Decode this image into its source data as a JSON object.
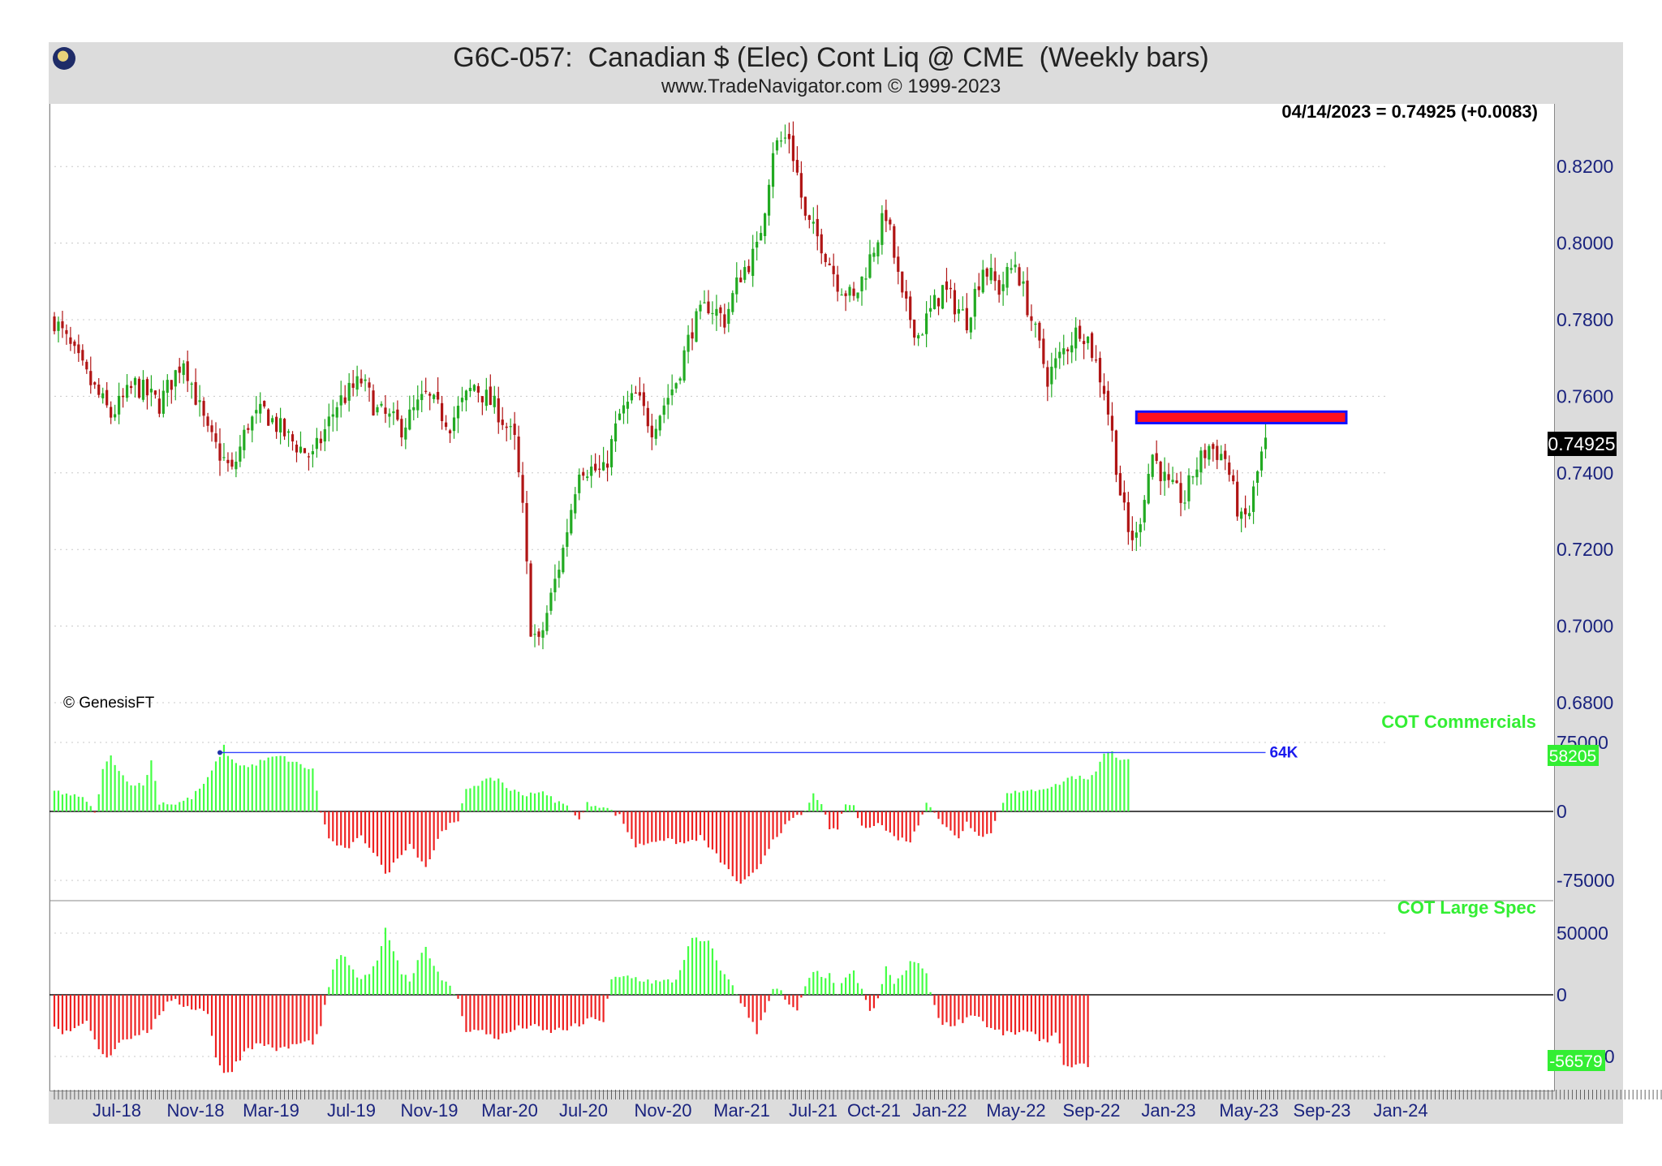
{
  "title": "G6C-057:  Canadian $ (Elec) Cont Liq @ CME  (Weekly bars)",
  "subtitle": "www.TradeNavigator.com © 1999-2023",
  "last_price_label": "04/14/2023 = 0.74925 (+0.0083)",
  "last_price_tag": "0.74925",
  "copyright": "© GenesisFT",
  "colors": {
    "up": "#22aa22",
    "down": "#b01515",
    "cot_pos": "#44ff44",
    "cot_neg": "#ee2222",
    "label_green": "#33ee33",
    "axis_text": "#1a237e",
    "resistance_fill": "#ff1020",
    "resistance_border": "#1010ff",
    "trend_line": "#3344ff"
  },
  "chart_data": [
    {
      "type": "candlestick",
      "series_name": "",
      "x_labels": [
        "Jul-18",
        "Nov-18",
        "Mar-19",
        "Jul-19",
        "Nov-19",
        "Mar-20",
        "Jul-20",
        "Nov-20",
        "Mar-21",
        "Jul-21",
        "Oct-21",
        "Jan-22",
        "May-22",
        "Sep-22",
        "Jan-23",
        "May-23",
        "Sep-23",
        "Jan-24"
      ],
      "y_ticks": [
        0.82,
        0.8,
        0.78,
        0.76,
        0.74,
        0.72,
        0.7,
        0.68
      ],
      "y_tick_labels": [
        "0.8200",
        "0.8000",
        "0.7800",
        "0.7600",
        "0.7400",
        "0.7200",
        "0.7000",
        "0.6800"
      ],
      "ylim": [
        0.676,
        0.835
      ],
      "close_path": [
        [
          0,
          0.78
        ],
        [
          8,
          0.765
        ],
        [
          14,
          0.755
        ],
        [
          20,
          0.763
        ],
        [
          26,
          0.758
        ],
        [
          32,
          0.77
        ],
        [
          38,
          0.75
        ],
        [
          44,
          0.74
        ],
        [
          48,
          0.753
        ],
        [
          52,
          0.756
        ],
        [
          58,
          0.749
        ],
        [
          64,
          0.744
        ],
        [
          70,
          0.758
        ],
        [
          76,
          0.764
        ],
        [
          80,
          0.756
        ],
        [
          86,
          0.752
        ],
        [
          92,
          0.76
        ],
        [
          98,
          0.753
        ],
        [
          104,
          0.763
        ],
        [
          110,
          0.756
        ],
        [
          114,
          0.748
        ],
        [
          116,
          0.73
        ],
        [
          118,
          0.7
        ],
        [
          120,
          0.695
        ],
        [
          126,
          0.72
        ],
        [
          130,
          0.742
        ],
        [
          136,
          0.74
        ],
        [
          140,
          0.755
        ],
        [
          144,
          0.76
        ],
        [
          148,
          0.752
        ],
        [
          154,
          0.764
        ],
        [
          158,
          0.778
        ],
        [
          162,
          0.784
        ],
        [
          166,
          0.78
        ],
        [
          170,
          0.792
        ],
        [
          174,
          0.798
        ],
        [
          176,
          0.81
        ],
        [
          178,
          0.825
        ],
        [
          182,
          0.828
        ],
        [
          184,
          0.818
        ],
        [
          186,
          0.806
        ],
        [
          190,
          0.8
        ],
        [
          194,
          0.79
        ],
        [
          198,
          0.785
        ],
        [
          202,
          0.796
        ],
        [
          206,
          0.808
        ],
        [
          210,
          0.785
        ],
        [
          214,
          0.776
        ],
        [
          220,
          0.788
        ],
        [
          226,
          0.78
        ],
        [
          230,
          0.794
        ],
        [
          234,
          0.788
        ],
        [
          238,
          0.795
        ],
        [
          242,
          0.78
        ],
        [
          246,
          0.765
        ],
        [
          250,
          0.772
        ],
        [
          254,
          0.778
        ],
        [
          256,
          0.775
        ],
        [
          260,
          0.762
        ],
        [
          262,
          0.75
        ],
        [
          264,
          0.735
        ],
        [
          266,
          0.724
        ],
        [
          268,
          0.723
        ],
        [
          270,
          0.735
        ],
        [
          272,
          0.745
        ],
        [
          276,
          0.736
        ],
        [
          280,
          0.733
        ],
        [
          282,
          0.74
        ],
        [
          286,
          0.747
        ],
        [
          290,
          0.744
        ],
        [
          292,
          0.735
        ],
        [
          294,
          0.727
        ],
        [
          296,
          0.73
        ],
        [
          298,
          0.74
        ],
        [
          300,
          0.7492
        ]
      ],
      "resistance_zone": {
        "from_index": 268,
        "to_index": 320,
        "low": 0.753,
        "high": 0.756
      }
    },
    {
      "type": "histogram",
      "series_name": "COT Commercials",
      "last_value": "58205",
      "y_ticks": [
        75000,
        0,
        -75000
      ],
      "y_tick_labels": [
        "75000",
        "0",
        "-75000"
      ],
      "ylim": [
        -100000,
        100000
      ],
      "annotation": "64K",
      "trend_line_value": 64000,
      "trend_line_from_index": 41,
      "trend_line_to_index": 300,
      "path": [
        [
          0,
          22000
        ],
        [
          4,
          18000
        ],
        [
          8,
          12000
        ],
        [
          10,
          -3000
        ],
        [
          12,
          45000
        ],
        [
          14,
          60000
        ],
        [
          18,
          32000
        ],
        [
          22,
          28000
        ],
        [
          24,
          55000
        ],
        [
          26,
          10000
        ],
        [
          30,
          8000
        ],
        [
          34,
          15000
        ],
        [
          38,
          35000
        ],
        [
          42,
          70000
        ],
        [
          44,
          55000
        ],
        [
          48,
          48000
        ],
        [
          52,
          56000
        ],
        [
          56,
          60000
        ],
        [
          60,
          52000
        ],
        [
          64,
          45000
        ],
        [
          66,
          0
        ],
        [
          68,
          -30000
        ],
        [
          72,
          -42000
        ],
        [
          76,
          -28000
        ],
        [
          80,
          -48000
        ],
        [
          82,
          -70000
        ],
        [
          86,
          -45000
        ],
        [
          88,
          -35000
        ],
        [
          92,
          -60000
        ],
        [
          94,
          -42000
        ],
        [
          96,
          -20000
        ],
        [
          98,
          -15000
        ],
        [
          100,
          -12000
        ],
        [
          102,
          25000
        ],
        [
          106,
          32000
        ],
        [
          110,
          36000
        ],
        [
          112,
          26000
        ],
        [
          116,
          18000
        ],
        [
          120,
          22000
        ],
        [
          124,
          12000
        ],
        [
          128,
          3000
        ],
        [
          130,
          -10000
        ],
        [
          132,
          8000
        ],
        [
          136,
          6000
        ],
        [
          138,
          0
        ],
        [
          140,
          -5000
        ],
        [
          144,
          -38000
        ],
        [
          150,
          -30000
        ],
        [
          156,
          -35000
        ],
        [
          160,
          -28000
        ],
        [
          164,
          -48000
        ],
        [
          168,
          -70000
        ],
        [
          170,
          -80000
        ],
        [
          174,
          -65000
        ],
        [
          178,
          -30000
        ],
        [
          182,
          -12000
        ],
        [
          186,
          0
        ],
        [
          188,
          18000
        ],
        [
          190,
          10000
        ],
        [
          192,
          -22000
        ],
        [
          194,
          -18000
        ],
        [
          196,
          8000
        ],
        [
          198,
          6000
        ],
        [
          200,
          -18000
        ],
        [
          204,
          -12000
        ],
        [
          208,
          -28000
        ],
        [
          212,
          -32000
        ],
        [
          214,
          -15000
        ],
        [
          216,
          12000
        ],
        [
          218,
          0
        ],
        [
          220,
          -15000
        ],
        [
          224,
          -28000
        ],
        [
          226,
          -12000
        ],
        [
          230,
          -28000
        ],
        [
          232,
          -22000
        ],
        [
          234,
          0
        ],
        [
          236,
          22000
        ],
        [
          240,
          20000
        ],
        [
          244,
          25000
        ],
        [
          248,
          28000
        ],
        [
          252,
          38000
        ],
        [
          256,
          36000
        ],
        [
          258,
          45000
        ],
        [
          260,
          62000
        ],
        [
          262,
          64000
        ],
        [
          264,
          58000
        ],
        [
          266,
          58205
        ]
      ]
    },
    {
      "type": "histogram",
      "series_name": "COT Large Spec",
      "last_value": "-56579",
      "y_ticks": [
        50000,
        0,
        -50000
      ],
      "y_tick_labels": [
        "50000",
        "0",
        "-50000"
      ],
      "ylim": [
        -80000,
        80000
      ],
      "path": [
        [
          0,
          -28000
        ],
        [
          4,
          -32000
        ],
        [
          8,
          -22000
        ],
        [
          10,
          -38000
        ],
        [
          12,
          -50000
        ],
        [
          14,
          -48000
        ],
        [
          16,
          -38000
        ],
        [
          20,
          -32000
        ],
        [
          24,
          -28000
        ],
        [
          26,
          -15000
        ],
        [
          28,
          -8000
        ],
        [
          30,
          -6000
        ],
        [
          34,
          -10000
        ],
        [
          38,
          -14000
        ],
        [
          40,
          -50000
        ],
        [
          42,
          -65000
        ],
        [
          44,
          -60000
        ],
        [
          48,
          -42000
        ],
        [
          52,
          -40000
        ],
        [
          56,
          -45000
        ],
        [
          60,
          -40000
        ],
        [
          64,
          -38000
        ],
        [
          66,
          -28000
        ],
        [
          68,
          8000
        ],
        [
          70,
          28000
        ],
        [
          72,
          32000
        ],
        [
          74,
          18000
        ],
        [
          76,
          12000
        ],
        [
          78,
          15000
        ],
        [
          80,
          30000
        ],
        [
          82,
          52000
        ],
        [
          84,
          38000
        ],
        [
          86,
          18000
        ],
        [
          88,
          12000
        ],
        [
          90,
          28000
        ],
        [
          92,
          40000
        ],
        [
          94,
          24000
        ],
        [
          96,
          10000
        ],
        [
          98,
          8000
        ],
        [
          100,
          -5000
        ],
        [
          102,
          -28000
        ],
        [
          106,
          -30000
        ],
        [
          110,
          -35000
        ],
        [
          114,
          -28000
        ],
        [
          118,
          -25000
        ],
        [
          122,
          -30000
        ],
        [
          126,
          -28000
        ],
        [
          130,
          -25000
        ],
        [
          134,
          -18000
        ],
        [
          136,
          -22000
        ],
        [
          138,
          12000
        ],
        [
          142,
          15000
        ],
        [
          146,
          12000
        ],
        [
          150,
          10000
        ],
        [
          154,
          12000
        ],
        [
          156,
          30000
        ],
        [
          158,
          45000
        ],
        [
          162,
          42000
        ],
        [
          166,
          15000
        ],
        [
          168,
          8000
        ],
        [
          170,
          -5000
        ],
        [
          172,
          -18000
        ],
        [
          174,
          -30000
        ],
        [
          176,
          -12000
        ],
        [
          178,
          5000
        ],
        [
          180,
          2000
        ],
        [
          182,
          -10000
        ],
        [
          184,
          -12000
        ],
        [
          186,
          5000
        ],
        [
          188,
          18000
        ],
        [
          192,
          15000
        ],
        [
          194,
          2000
        ],
        [
          196,
          12000
        ],
        [
          198,
          18000
        ],
        [
          200,
          5000
        ],
        [
          202,
          -15000
        ],
        [
          204,
          -5000
        ],
        [
          206,
          22000
        ],
        [
          208,
          10000
        ],
        [
          210,
          15000
        ],
        [
          212,
          25000
        ],
        [
          214,
          28000
        ],
        [
          216,
          15000
        ],
        [
          218,
          -8000
        ],
        [
          220,
          -25000
        ],
        [
          224,
          -22000
        ],
        [
          228,
          -15000
        ],
        [
          232,
          -28000
        ],
        [
          236,
          -32000
        ],
        [
          240,
          -30000
        ],
        [
          244,
          -35000
        ],
        [
          246,
          -38000
        ],
        [
          248,
          -28000
        ],
        [
          250,
          -55000
        ],
        [
          252,
          -60000
        ],
        [
          256,
          -56579
        ]
      ]
    }
  ]
}
